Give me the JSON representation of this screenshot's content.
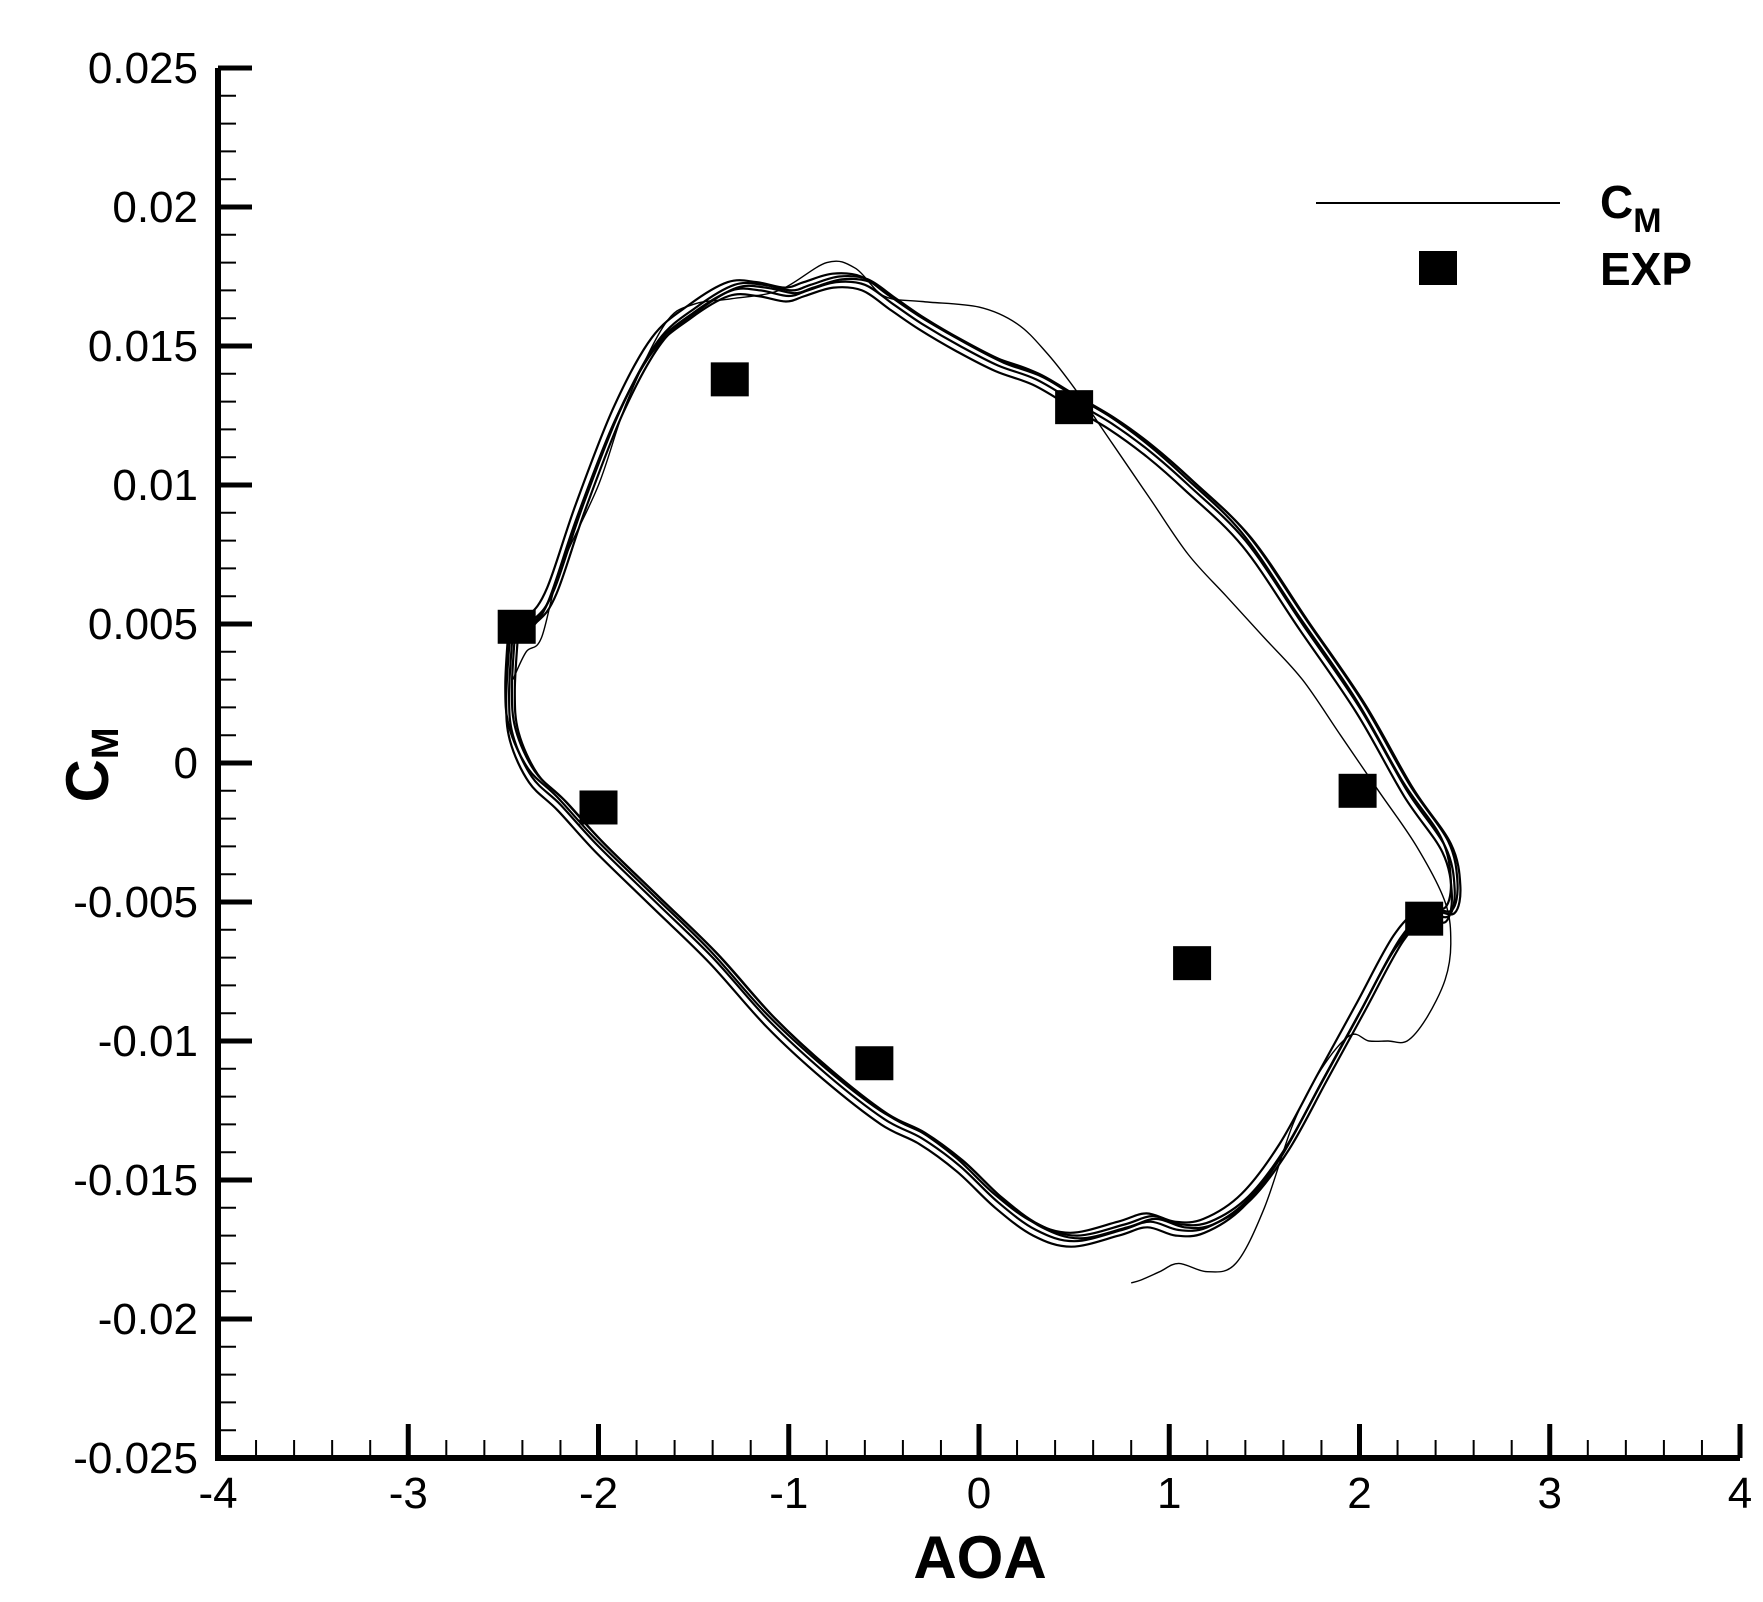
{
  "chart_data": {
    "type": "scatter",
    "xlabel": "AOA",
    "ylabel": {
      "main": "C",
      "sub": "M"
    },
    "xlim": [
      -4,
      4
    ],
    "ylim": [
      -0.025,
      0.025
    ],
    "xticks": [
      {
        "v": -4,
        "label": "-4"
      },
      {
        "v": -3,
        "label": "-3"
      },
      {
        "v": -2,
        "label": "-2"
      },
      {
        "v": -1,
        "label": "-1"
      },
      {
        "v": 0,
        "label": "0"
      },
      {
        "v": 1,
        "label": "1"
      },
      {
        "v": 2,
        "label": "2"
      },
      {
        "v": 3,
        "label": "3"
      },
      {
        "v": 4,
        "label": "4"
      }
    ],
    "yticks": [
      {
        "v": 0.025,
        "label": "0.025"
      },
      {
        "v": 0.02,
        "label": "0.02"
      },
      {
        "v": 0.015,
        "label": "0.015"
      },
      {
        "v": 0.01,
        "label": "0.01"
      },
      {
        "v": 0.005,
        "label": "0.005"
      },
      {
        "v": 0,
        "label": "0"
      },
      {
        "v": -0.005,
        "label": "-0.005"
      },
      {
        "v": -0.01,
        "label": "-0.01"
      },
      {
        "v": -0.015,
        "label": "-0.015"
      },
      {
        "v": -0.02,
        "label": "-0.02"
      },
      {
        "v": -0.025,
        "label": "-0.025"
      }
    ],
    "grid": false,
    "legend_position": "top-right",
    "series": [
      {
        "name": {
          "main": "C",
          "sub": "M"
        },
        "style": "line",
        "color": "#000000",
        "loops": [
          {
            "points": [
              [
                -2.45,
                0.0048
              ],
              [
                -2.35,
                0.005
              ],
              [
                -2.25,
                0.006
              ],
              [
                -2.1,
                0.009
              ],
              [
                -1.9,
                0.0125
              ],
              [
                -1.7,
                0.015
              ],
              [
                -1.5,
                0.0162
              ],
              [
                -1.3,
                0.017
              ],
              [
                -1.15,
                0.017
              ],
              [
                -1.0,
                0.0168
              ],
              [
                -0.9,
                0.017
              ],
              [
                -0.75,
                0.0173
              ],
              [
                -0.6,
                0.0172
              ],
              [
                -0.45,
                0.0165
              ],
              [
                -0.3,
                0.0158
              ],
              [
                -0.1,
                0.015
              ],
              [
                0.1,
                0.0143
              ],
              [
                0.3,
                0.0138
              ],
              [
                0.5,
                0.013
              ],
              [
                0.7,
                0.0122
              ],
              [
                0.9,
                0.0112
              ],
              [
                1.1,
                0.01
              ],
              [
                1.4,
                0.008
              ],
              [
                1.7,
                0.005
              ],
              [
                2.0,
                0.002
              ],
              [
                2.25,
                -0.001
              ],
              [
                2.45,
                -0.003
              ],
              [
                2.5,
                -0.0045
              ],
              [
                2.47,
                -0.0055
              ],
              [
                2.35,
                -0.0055
              ],
              [
                2.2,
                -0.0065
              ],
              [
                2.0,
                -0.009
              ],
              [
                1.8,
                -0.0115
              ],
              [
                1.6,
                -0.014
              ],
              [
                1.4,
                -0.0158
              ],
              [
                1.2,
                -0.0167
              ],
              [
                1.05,
                -0.0168
              ],
              [
                0.9,
                -0.0165
              ],
              [
                0.75,
                -0.0168
              ],
              [
                0.5,
                -0.0172
              ],
              [
                0.3,
                -0.0168
              ],
              [
                0.1,
                -0.0158
              ],
              [
                -0.1,
                -0.0145
              ],
              [
                -0.3,
                -0.0135
              ],
              [
                -0.5,
                -0.0128
              ],
              [
                -0.8,
                -0.0112
              ],
              [
                -1.1,
                -0.0093
              ],
              [
                -1.4,
                -0.007
              ],
              [
                -1.7,
                -0.005
              ],
              [
                -2.0,
                -0.003
              ],
              [
                -2.2,
                -0.0015
              ],
              [
                -2.35,
                -0.0005
              ],
              [
                -2.45,
                0.001
              ],
              [
                -2.47,
                0.0025
              ],
              [
                -2.45,
                0.0048
              ]
            ],
            "offsets": [
              [
                0,
                0
              ],
              [
                0.015,
                0.0002
              ],
              [
                -0.015,
                -0.0002
              ],
              [
                0.03,
                0.0001
              ],
              [
                -0.02,
                0.0003
              ]
            ],
            "stroke": 2.2
          },
          {
            "points": [
              [
                -2.45,
                0.003
              ],
              [
                -2.38,
                0.004
              ],
              [
                -2.3,
                0.0045
              ],
              [
                -2.2,
                0.007
              ],
              [
                -2.0,
                0.01
              ],
              [
                -1.85,
                0.013
              ],
              [
                -1.65,
                0.0158
              ],
              [
                -1.5,
                0.0165
              ],
              [
                -1.3,
                0.0167
              ],
              [
                -1.05,
                0.017
              ],
              [
                -0.8,
                0.018
              ],
              [
                -0.65,
                0.0178
              ],
              [
                -0.5,
                0.0168
              ],
              [
                -0.3,
                0.0166
              ],
              [
                0.0,
                0.0164
              ],
              [
                0.2,
                0.0158
              ],
              [
                0.35,
                0.0148
              ],
              [
                0.5,
                0.0135
              ],
              [
                0.7,
                0.0115
              ],
              [
                0.9,
                0.0095
              ],
              [
                1.1,
                0.0075
              ],
              [
                1.3,
                0.006
              ],
              [
                1.5,
                0.0045
              ],
              [
                1.7,
                0.003
              ],
              [
                1.9,
                0.001
              ],
              [
                2.1,
                -0.001
              ],
              [
                2.3,
                -0.003
              ],
              [
                2.45,
                -0.005
              ],
              [
                2.48,
                -0.0065
              ],
              [
                2.45,
                -0.0078
              ],
              [
                2.35,
                -0.0092
              ],
              [
                2.25,
                -0.01
              ],
              [
                2.15,
                -0.01
              ],
              [
                2.05,
                -0.01
              ],
              [
                1.95,
                -0.0098
              ],
              [
                1.8,
                -0.011
              ],
              [
                1.65,
                -0.013
              ],
              [
                1.5,
                -0.016
              ],
              [
                1.35,
                -0.018
              ],
              [
                1.2,
                -0.0183
              ],
              [
                1.05,
                -0.018
              ],
              [
                0.95,
                -0.0183
              ],
              [
                0.85,
                -0.0186
              ],
              [
                0.8,
                -0.0187
              ]
            ],
            "offsets": [
              [
                0,
                0
              ]
            ],
            "stroke": 1.4
          }
        ]
      },
      {
        "name": "EXP",
        "style": "marker",
        "marker": "square",
        "color": "#000000",
        "x": [
          -2.43,
          -1.31,
          0.5,
          -2.0,
          -0.55,
          1.12,
          1.99,
          2.34
        ],
        "y": [
          0.0049,
          0.0138,
          0.0128,
          -0.0016,
          -0.0108,
          -0.0072,
          -0.001,
          -0.0056
        ]
      }
    ]
  }
}
